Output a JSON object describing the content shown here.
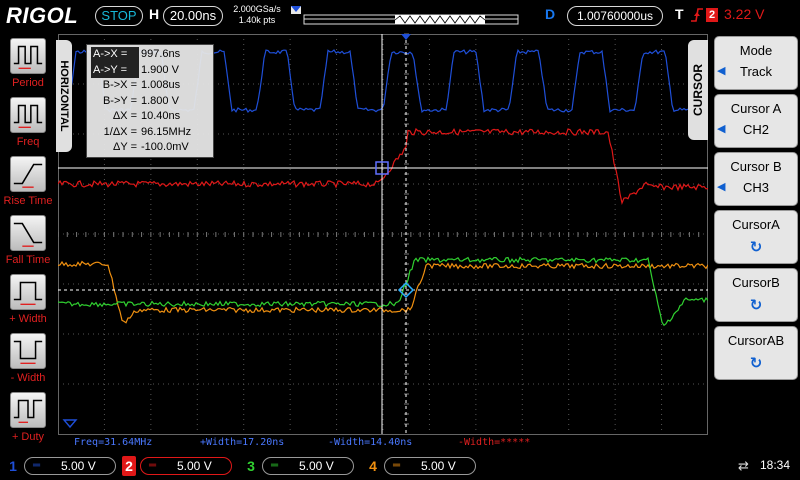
{
  "top_bar": {
    "brand": "RIGOL",
    "run_state": "STOP",
    "horizontal_label": "H",
    "timebase": "20.00ns",
    "sample_rate": "2.000GSa/s",
    "memory_depth": "1.40k pts",
    "delay_label": "D",
    "delay_value": "1.00760000us",
    "trigger_label": "T",
    "trigger_source": "2",
    "trigger_level": "3.22 V"
  },
  "measure_buttons": [
    {
      "label": "Period"
    },
    {
      "label": "Freq"
    },
    {
      "label": "Rise Time"
    },
    {
      "label": "Fall Time"
    },
    {
      "label": "+ Width"
    },
    {
      "label": "- Width"
    },
    {
      "label": "+ Duty"
    }
  ],
  "horizontal_tab": "HORIZONTAL",
  "cursor_readout": {
    "ax_key": "A->X =",
    "ax_val": "997.6ns",
    "ay_key": "A->Y =",
    "ay_val": "1.900 V",
    "bx_key": "B->X =",
    "bx_val": "1.008us",
    "by_key": "B->Y =",
    "by_val": "1.800 V",
    "dx_key": "ΔX =",
    "dx_val": "10.40ns",
    "inv_key": "1/ΔX =",
    "inv_val": "96.15MHz",
    "dy_key": "ΔY =",
    "dy_val": "-100.0mV"
  },
  "measurements": {
    "freq": "Freq=31.64MHz",
    "pos_width": "+Width=17.20ns",
    "neg_width": "-Width=14.40ns",
    "neg_width2": "-Width=*****"
  },
  "cursor_menu": {
    "tab": "CURSOR",
    "mode_title": "Mode",
    "mode_value": "Track",
    "cursor_a_title": "Cursor A",
    "cursor_a_value": "CH2",
    "cursor_b_title": "Cursor B",
    "cursor_b_value": "CH3",
    "knob_a_title": "CursorA",
    "knob_b_title": "CursorB",
    "knob_ab_title": "CursorAB"
  },
  "channels": [
    {
      "number": "1",
      "scale": "5.00 V",
      "color": "#1f4fd8"
    },
    {
      "number": "2",
      "scale": "5.00 V",
      "color": "#e01818"
    },
    {
      "number": "3",
      "scale": "5.00 V",
      "color": "#30d030"
    },
    {
      "number": "4",
      "scale": "5.00 V",
      "color": "#f09010"
    }
  ],
  "status": {
    "clock": "18:34"
  }
}
